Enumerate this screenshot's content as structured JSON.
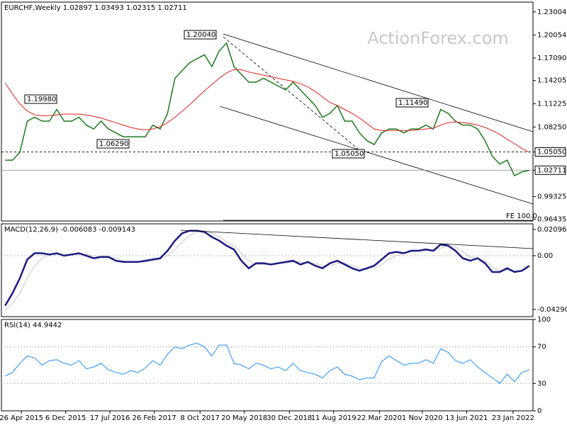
{
  "chart_data": [
    {
      "type": "line",
      "title": "EURCHF,Weekly  1.02897 1.03493 1.02315 1.02711",
      "watermark": "ActionForex.com",
      "annotations": [
        "1.19980",
        "1.06290",
        "1.20040",
        "1.05050",
        "1.11490",
        "FE 100.0"
      ],
      "xlim": [
        -0.5,
        71.5
      ],
      "ylim": [
        0.962,
        1.2426
      ],
      "yticks": [
        1.23004,
        1.20054,
        {
          "value": 1.1709,
          "label": "1.17090"
        },
        1.14205,
        1.11225,
        {
          "value": 1.0825,
          "label": "1.08250"
        },
        {
          "value": 1.0505,
          "label": "1.05050"
        },
        1.02711,
        0.99325,
        0.96435
      ],
      "series": [
        {
          "color": "#1a7a1a",
          "values": [
            1.04,
            1.04,
            1.05,
            1.09,
            1.095,
            1.09,
            1.09,
            1.105,
            1.09,
            1.09,
            1.095,
            1.085,
            1.08,
            1.09,
            1.08,
            1.075,
            1.07,
            1.07,
            1.07,
            1.07,
            1.085,
            1.08,
            1.1,
            1.145,
            1.155,
            1.165,
            1.17,
            1.175,
            1.16,
            1.18,
            1.19,
            1.16,
            1.15,
            1.14,
            1.14,
            1.145,
            1.14,
            1.135,
            1.13,
            1.14,
            1.13,
            1.12,
            1.11,
            1.095,
            1.1,
            1.11,
            1.09,
            1.09,
            1.075,
            1.065,
            1.06,
            1.075,
            1.08,
            1.08,
            1.075,
            1.08,
            1.08,
            1.085,
            1.08,
            1.105,
            1.1,
            1.09,
            1.085,
            1.085,
            1.08,
            1.065,
            1.045,
            1.035,
            1.04,
            1.02,
            1.025,
            1.027
          ]
        },
        {
          "color": "#e02020",
          "values": [
            1.139,
            1.125,
            1.112,
            1.103,
            1.098,
            1.097,
            1.097,
            1.098,
            1.099,
            1.099,
            1.099,
            1.098,
            1.096,
            1.094,
            1.091,
            1.088,
            1.085,
            1.082,
            1.08,
            1.079,
            1.08,
            1.083,
            1.088,
            1.095,
            1.103,
            1.111,
            1.12,
            1.129,
            1.137,
            1.145,
            1.152,
            1.156,
            1.156,
            1.153,
            1.151,
            1.149,
            1.147,
            1.145,
            1.143,
            1.141,
            1.138,
            1.134,
            1.128,
            1.121,
            1.114,
            1.11,
            1.105,
            1.1,
            1.094,
            1.087,
            1.08,
            1.078,
            1.078,
            1.078,
            1.078,
            1.078,
            1.079,
            1.08,
            1.081,
            1.085,
            1.088,
            1.089,
            1.088,
            1.087,
            1.085,
            1.082,
            1.078,
            1.073,
            1.067,
            1.061,
            1.055,
            1.05
          ]
        }
      ]
    },
    {
      "type": "line",
      "title": "MACD(12,26,9) -0.006083 -0.009143",
      "xlim": [
        -0.5,
        71.5
      ],
      "ylim": [
        -0.0487,
        0.0255
      ],
      "yticks": [
        0.020965,
        {
          "value": 0,
          "label": "0.00"
        },
        -0.042902
      ],
      "series": [
        {
          "color": "#c8c8c8",
          "values": [
            -0.044,
            -0.038,
            -0.03,
            -0.018,
            -0.008,
            -0.002,
            0.001,
            0.001,
            0.001,
            0.001,
            0.001,
            0.001,
            0,
            -0.001,
            -0.001,
            -0.002,
            -0.004,
            -0.005,
            -0.005,
            -0.005,
            -0.004,
            -0.003,
            0,
            0.005,
            0.011,
            0.016,
            0.019,
            0.02,
            0.018,
            0.015,
            0.011,
            0.008,
            0.002,
            -0.004,
            -0.007,
            -0.007,
            -0.007,
            -0.006,
            -0.006,
            -0.005,
            -0.005,
            -0.006,
            -0.006,
            -0.008,
            -0.008,
            -0.006,
            -0.006,
            -0.008,
            -0.01,
            -0.011,
            -0.01,
            -0.007,
            -0.003,
            0,
            0.002,
            0.003,
            0.004,
            0.004,
            0.004,
            0.006,
            0.008,
            0.007,
            0.003,
            -0.001,
            -0.002,
            -0.004,
            -0.009,
            -0.012,
            -0.012,
            -0.012,
            -0.012,
            -0.01
          ]
        },
        {
          "color": "#1a1a80",
          "values": [
            -0.04,
            -0.03,
            -0.018,
            -0.003,
            0.002,
            0.002,
            0.001,
            0.002,
            0,
            0.001,
            0.002,
            0,
            -0.002,
            -0.001,
            -0.001,
            -0.004,
            -0.005,
            -0.005,
            -0.005,
            -0.004,
            -0.003,
            -0.002,
            0.004,
            0.012,
            0.018,
            0.02,
            0.02,
            0.019,
            0.015,
            0.012,
            0.008,
            0.005,
            -0.004,
            -0.01,
            -0.006,
            -0.006,
            -0.007,
            -0.006,
            -0.005,
            -0.004,
            -0.007,
            -0.005,
            -0.008,
            -0.01,
            -0.006,
            -0.004,
            -0.007,
            -0.01,
            -0.012,
            -0.01,
            -0.008,
            -0.003,
            0.002,
            0.003,
            0.002,
            0.004,
            0.004,
            0.005,
            0.004,
            0.009,
            0.008,
            0.004,
            -0.002,
            -0.004,
            -0.002,
            -0.006,
            -0.013,
            -0.013,
            -0.01,
            -0.013,
            -0.012,
            -0.008
          ]
        }
      ]
    },
    {
      "type": "line",
      "title": "RSI(14) 44.9442",
      "grid": true,
      "xlim": [
        -0.5,
        71.5
      ],
      "ylim": [
        0,
        100
      ],
      "yticks": [
        100,
        70,
        30,
        0
      ],
      "xticks": [
        {
          "value": 2.2,
          "label": "26 Apr 2015"
        },
        {
          "value": 8.2,
          "label": "6 Dec 2015"
        },
        {
          "value": 14.2,
          "label": "17 Jul 2016"
        },
        {
          "value": 20.2,
          "label": "26 Feb 2017"
        },
        {
          "value": 26.4,
          "label": "8 Oct 2017"
        },
        {
          "value": 32.4,
          "label": "20 May 2018"
        },
        {
          "value": 38.5,
          "label": "30 Dec 2018"
        },
        {
          "value": 44.5,
          "label": "11 Aug 2019"
        },
        {
          "value": 50.7,
          "label": "22 Mar 2020"
        },
        {
          "value": 56.5,
          "label": "1 Nov 2020"
        },
        {
          "value": 62.5,
          "label": "13 Jun 2021"
        },
        {
          "value": 68.8,
          "label": "23 Jan 2022"
        }
      ],
      "series": [
        {
          "color": "#1e90ff",
          "values": [
            38,
            42,
            52,
            60,
            58,
            50,
            55,
            56,
            52,
            50,
            55,
            46,
            48,
            52,
            45,
            42,
            40,
            44,
            42,
            47,
            55,
            50,
            62,
            70,
            68,
            72,
            74,
            70,
            60,
            72,
            72,
            52,
            50,
            46,
            52,
            50,
            46,
            48,
            44,
            52,
            44,
            42,
            40,
            36,
            44,
            48,
            40,
            38,
            34,
            36,
            36,
            54,
            60,
            55,
            50,
            52,
            52,
            56,
            52,
            68,
            64,
            55,
            52,
            56,
            48,
            42,
            36,
            30,
            40,
            32,
            42,
            45
          ]
        }
      ]
    }
  ]
}
